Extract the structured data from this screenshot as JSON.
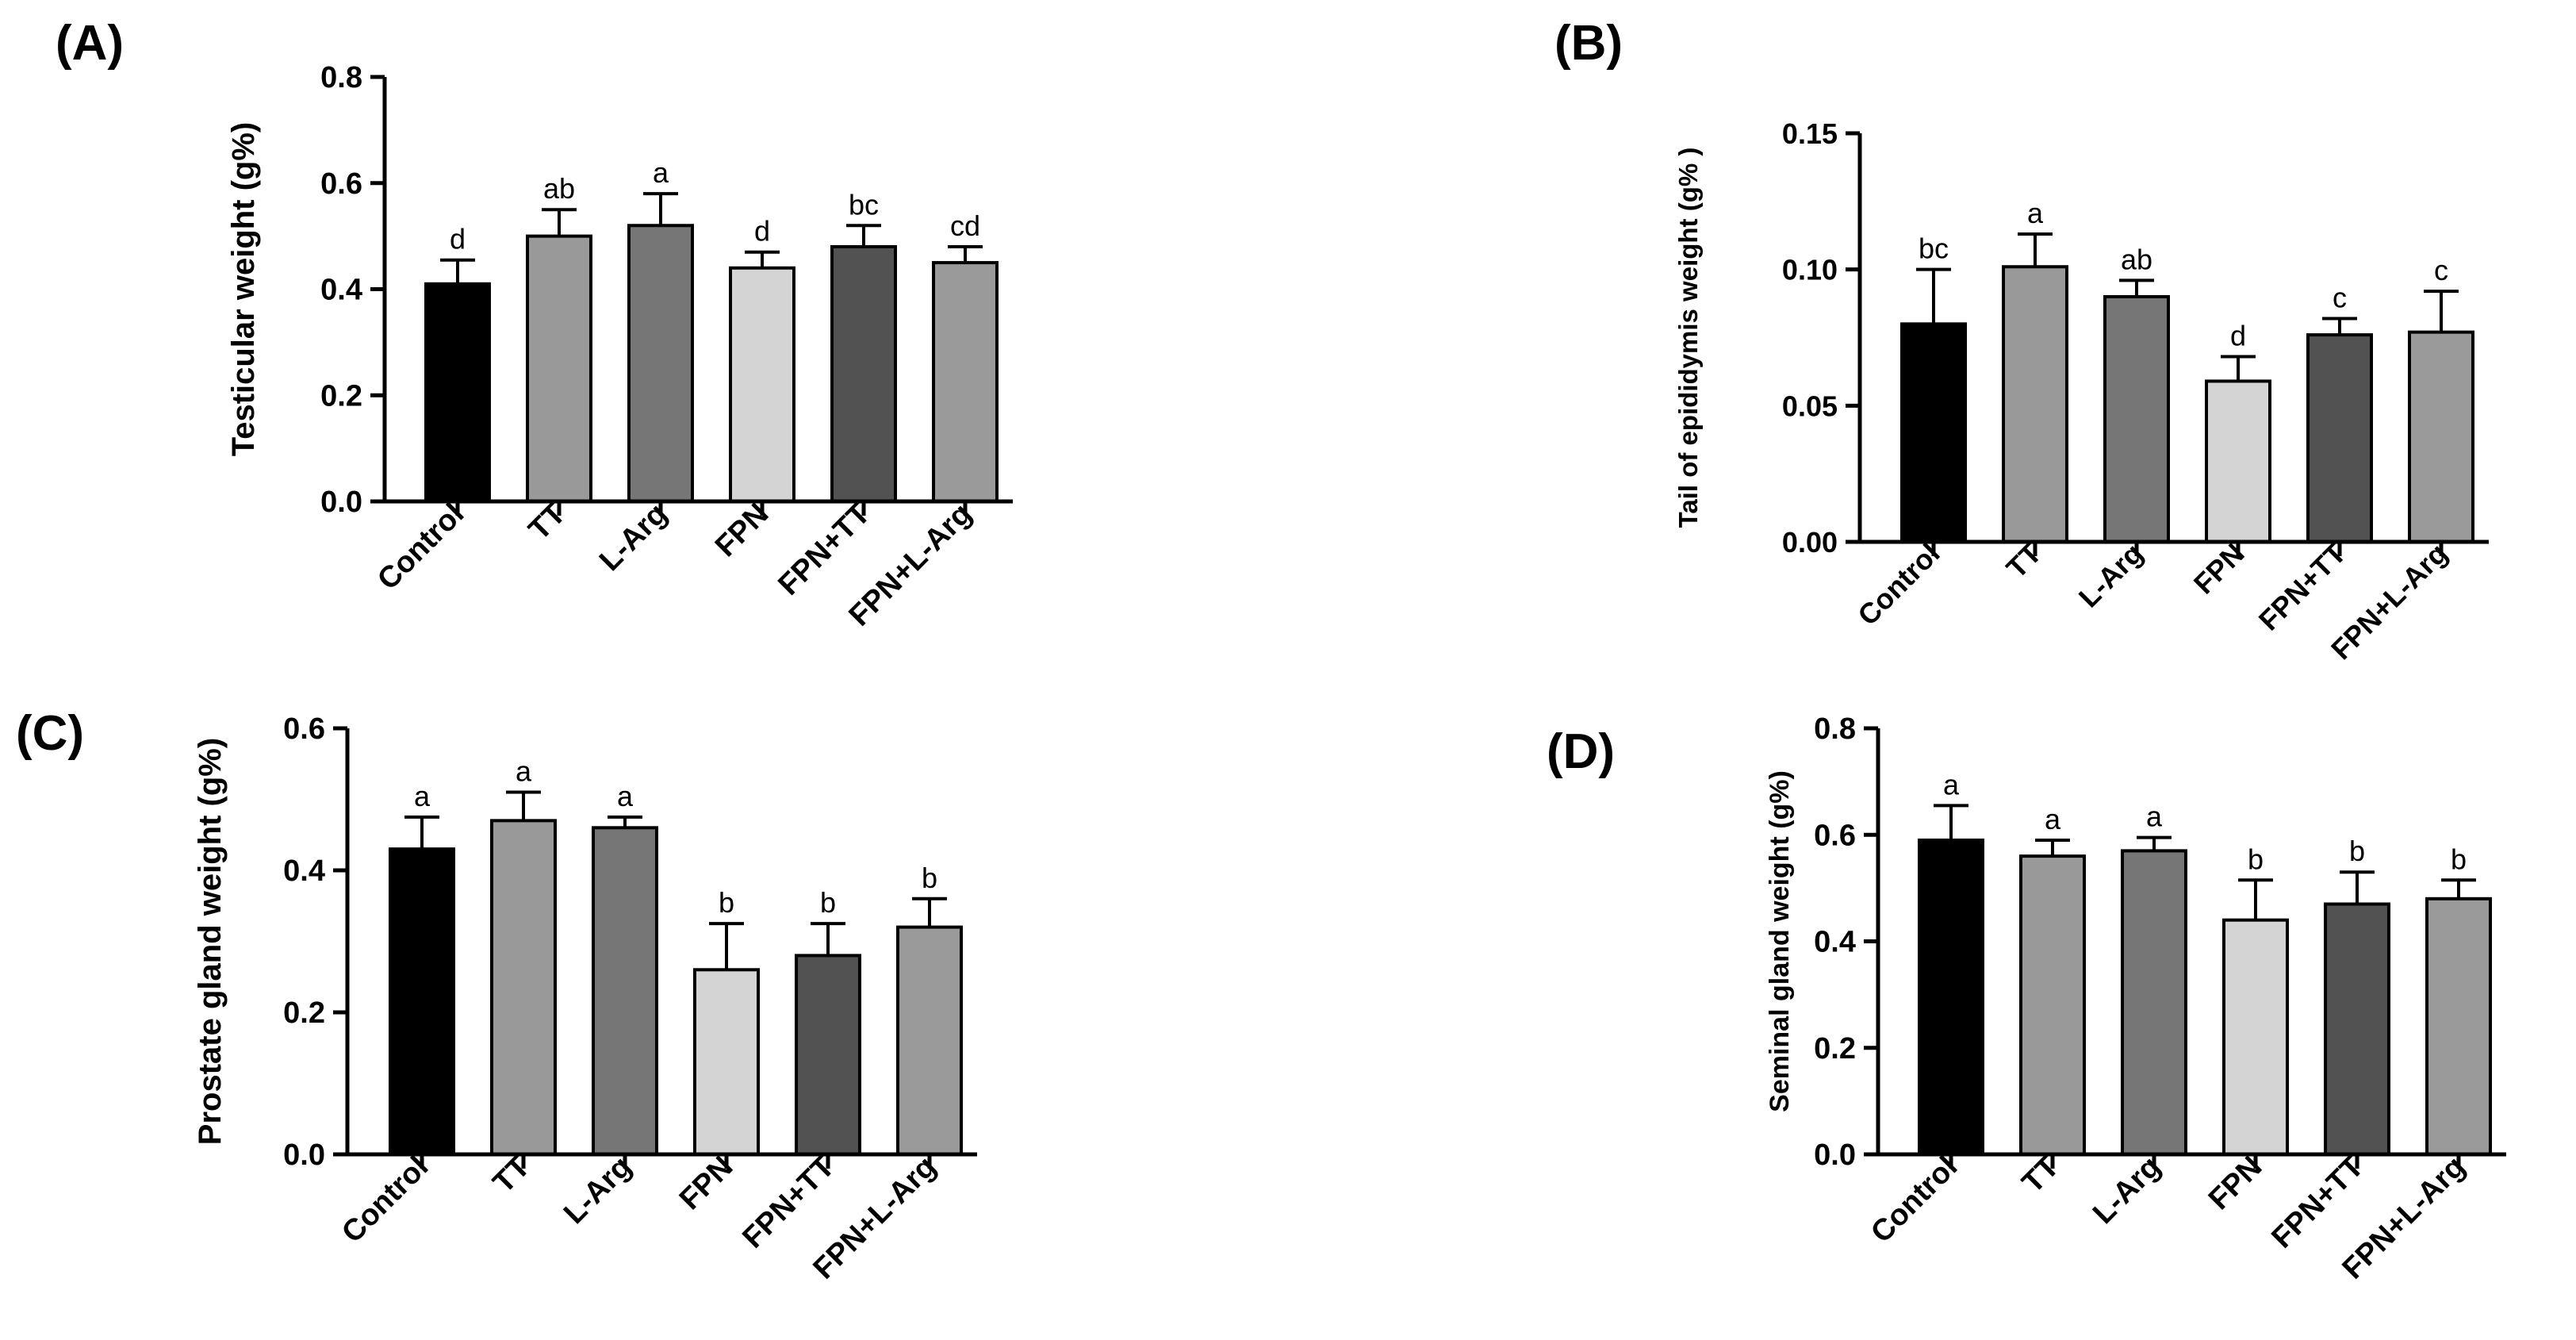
{
  "colors": {
    "axis": "#000000",
    "bar_stroke": "#000000",
    "bar_fills": [
      "#000000",
      "#999999",
      "#767676",
      "#d4d4d4",
      "#525252",
      "#9a9a9a"
    ]
  },
  "chart_data": [
    {
      "type": "bar",
      "panel": "(A)",
      "title": "",
      "xlabel": "",
      "ylabel": "Testicular weight (g%)",
      "categories": [
        "Control",
        "TT",
        "L-Arg",
        "FPN",
        "FPN+TT",
        "FPN+L-Arg"
      ],
      "values": [
        0.41,
        0.5,
        0.52,
        0.44,
        0.48,
        0.45
      ],
      "errors": [
        0.045,
        0.05,
        0.06,
        0.03,
        0.04,
        0.03
      ],
      "letters": [
        "d",
        "ab",
        "a",
        "d",
        "bc",
        "cd"
      ],
      "ylim": [
        0,
        0.8
      ],
      "yticks": [
        0.0,
        0.2,
        0.4,
        0.6,
        0.8
      ],
      "ytick_labels": [
        "0.0",
        "0.2",
        "0.4",
        "0.6",
        "0.8"
      ],
      "grid": false
    },
    {
      "type": "bar",
      "panel": "(B)",
      "title": "",
      "xlabel": "",
      "ylabel": "Tail of epididymis weight (g% )",
      "categories": [
        "Control",
        "TT",
        "L-Arg",
        "FPN",
        "FPN+TT",
        "FPN+L-Arg"
      ],
      "values": [
        0.08,
        0.101,
        0.09,
        0.059,
        0.076,
        0.077
      ],
      "errors": [
        0.02,
        0.012,
        0.006,
        0.009,
        0.006,
        0.015
      ],
      "letters": [
        "bc",
        "a",
        "ab",
        "d",
        "c",
        "c"
      ],
      "ylim": [
        0,
        0.15
      ],
      "yticks": [
        0.0,
        0.05,
        0.1,
        0.15
      ],
      "ytick_labels": [
        "0.00",
        "0.05",
        "0.10",
        "0.15"
      ],
      "grid": false
    },
    {
      "type": "bar",
      "panel": "(C)",
      "title": "",
      "xlabel": "",
      "ylabel": "Prostate gland weight (g%)",
      "categories": [
        "Control",
        "TT",
        "L-Arg",
        "FPN",
        "FPN+TT",
        "FPN+L-Arg"
      ],
      "values": [
        0.43,
        0.47,
        0.46,
        0.26,
        0.28,
        0.32
      ],
      "errors": [
        0.045,
        0.04,
        0.015,
        0.065,
        0.045,
        0.04
      ],
      "letters": [
        "a",
        "a",
        "a",
        "b",
        "b",
        "b"
      ],
      "ylim": [
        0,
        0.6
      ],
      "yticks": [
        0.0,
        0.2,
        0.4,
        0.6
      ],
      "ytick_labels": [
        "0.0",
        "0.2",
        "0.4",
        "0.6"
      ],
      "grid": false
    },
    {
      "type": "bar",
      "panel": "(D)",
      "title": "",
      "xlabel": "",
      "ylabel": "Seminal gland weight (g%)",
      "categories": [
        "Control",
        "TT",
        "L-Arg",
        "FPN",
        "FPN+TT",
        "FPN+L-Arg"
      ],
      "values": [
        0.59,
        0.56,
        0.57,
        0.44,
        0.47,
        0.48
      ],
      "errors": [
        0.065,
        0.03,
        0.025,
        0.075,
        0.06,
        0.035
      ],
      "letters": [
        "a",
        "a",
        "a",
        "b",
        "b",
        "b"
      ],
      "ylim": [
        0,
        0.8
      ],
      "yticks": [
        0.0,
        0.2,
        0.4,
        0.6,
        0.8
      ],
      "ytick_labels": [
        "0.0",
        "0.2",
        "0.4",
        "0.6",
        "0.8"
      ],
      "grid": false
    }
  ]
}
